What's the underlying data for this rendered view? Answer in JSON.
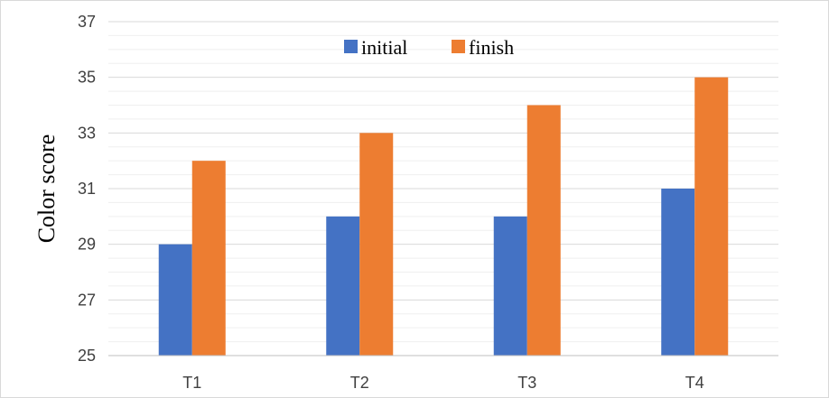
{
  "chart_data": {
    "type": "bar",
    "categories": [
      "T1",
      "T2",
      "T3",
      "T4"
    ],
    "series": [
      {
        "name": "initial",
        "values": [
          29,
          30,
          30,
          31
        ],
        "color": "#4472C4"
      },
      {
        "name": "finish",
        "values": [
          32,
          33,
          34,
          35
        ],
        "color": "#ED7D31"
      }
    ],
    "title": "",
    "xlabel": "",
    "ylabel": "Color score",
    "ylim": [
      25,
      37
    ],
    "yticks": [
      25,
      27,
      29,
      31,
      33,
      35,
      37
    ],
    "grid": true,
    "legend_position": "top-center"
  }
}
